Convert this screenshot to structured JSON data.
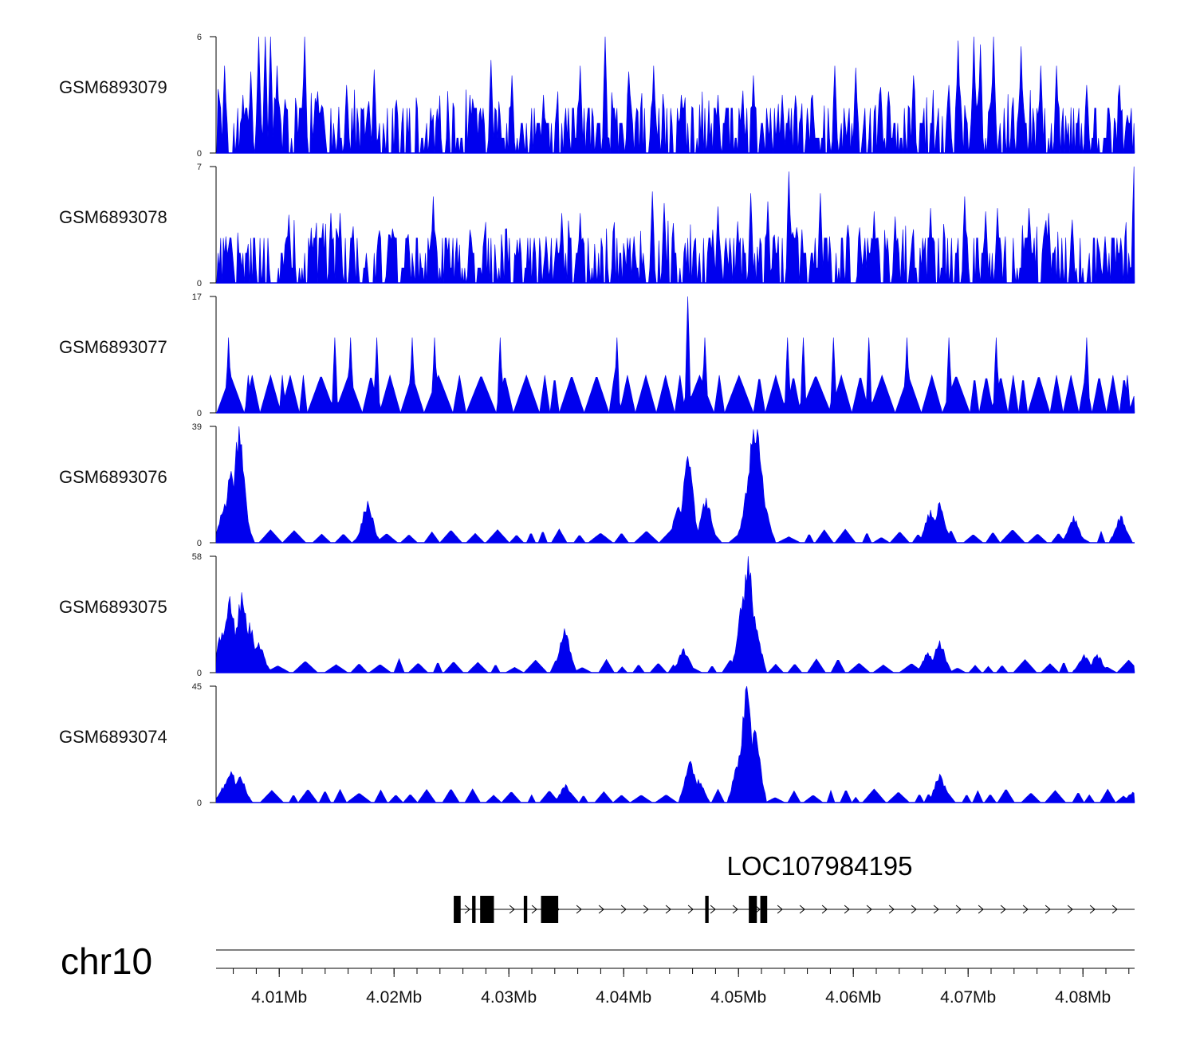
{
  "colors": {
    "signal": "#0000ee",
    "axis": "#000000",
    "text": "#111111"
  },
  "chart_data": {
    "type": "area",
    "title": "",
    "chromosome": "chr10",
    "xlim_bp": [
      4004500,
      4084500
    ],
    "x_ticks": [
      {
        "bp": 4010000,
        "label": "4.01Mb"
      },
      {
        "bp": 4020000,
        "label": "4.02Mb"
      },
      {
        "bp": 4030000,
        "label": "4.03Mb"
      },
      {
        "bp": 4040000,
        "label": "4.04Mb"
      },
      {
        "bp": 4050000,
        "label": "4.05Mb"
      },
      {
        "bp": 4060000,
        "label": "4.06Mb"
      },
      {
        "bp": 4070000,
        "label": "4.07Mb"
      },
      {
        "bp": 4080000,
        "label": "4.08Mb"
      }
    ],
    "minor_tick_bp": 2000,
    "tracks": [
      {
        "name": "GSM6893079",
        "ymax": 6,
        "ymax_label": "6",
        "ymin_label": "0",
        "profile": "dense",
        "peaks": [
          [
            4005200,
            4.5
          ],
          [
            4006800,
            3.0
          ],
          [
            4007500,
            4.2
          ],
          [
            4008100,
            6.0
          ],
          [
            4008700,
            6.0
          ],
          [
            4009200,
            6.0
          ],
          [
            4009800,
            4.5
          ],
          [
            4012200,
            6.0
          ],
          [
            4015800,
            3.5
          ],
          [
            4018200,
            4.3
          ],
          [
            4026500,
            3.0
          ],
          [
            4028400,
            4.8
          ],
          [
            4030200,
            4.0
          ],
          [
            4033000,
            3.0
          ],
          [
            4036200,
            4.5
          ],
          [
            4038300,
            6.0
          ],
          [
            4040400,
            4.2
          ],
          [
            4042500,
            4.5
          ],
          [
            4044900,
            3.0
          ],
          [
            4048200,
            3.0
          ],
          [
            4051200,
            4.0
          ],
          [
            4053800,
            3.0
          ],
          [
            4056400,
            3.0
          ],
          [
            4058300,
            4.5
          ],
          [
            4060100,
            4.4
          ],
          [
            4062300,
            3.4
          ],
          [
            4065200,
            4.0
          ],
          [
            4068300,
            3.5
          ],
          [
            4069100,
            5.8
          ],
          [
            4070400,
            6.0
          ],
          [
            4071000,
            5.6
          ],
          [
            4072200,
            6.0
          ],
          [
            4074600,
            5.5
          ],
          [
            4076300,
            4.5
          ],
          [
            4077600,
            4.5
          ],
          [
            4080300,
            3.5
          ],
          [
            4083100,
            3.5
          ]
        ]
      },
      {
        "name": "GSM6893078",
        "ymax": 7,
        "ymax_label": "7",
        "ymin_label": "0",
        "profile": "dense",
        "peaks": [
          [
            4005300,
            2.8
          ],
          [
            4010800,
            4.1
          ],
          [
            4012700,
            3.2
          ],
          [
            4014400,
            4.2
          ],
          [
            4015200,
            4.2
          ],
          [
            4019500,
            2.9
          ],
          [
            4023400,
            5.2
          ],
          [
            4026500,
            3.2
          ],
          [
            4027800,
            2.9
          ],
          [
            4030700,
            2.6
          ],
          [
            4033200,
            2.8
          ],
          [
            4034600,
            4.2
          ],
          [
            4036200,
            4.2
          ],
          [
            4040800,
            2.8
          ],
          [
            4042400,
            5.5
          ],
          [
            4043500,
            4.8
          ],
          [
            4047700,
            3.2
          ],
          [
            4048100,
            4.6
          ],
          [
            4049900,
            3.7
          ],
          [
            4051000,
            5.4
          ],
          [
            4052500,
            4.9
          ],
          [
            4054300,
            6.7
          ],
          [
            4057100,
            5.4
          ],
          [
            4060500,
            3.2
          ],
          [
            4061800,
            4.3
          ],
          [
            4063600,
            4.0
          ],
          [
            4066700,
            4.5
          ],
          [
            4069600,
            5.2
          ],
          [
            4071500,
            4.3
          ],
          [
            4072500,
            4.5
          ],
          [
            4075200,
            4.5
          ],
          [
            4077000,
            4.2
          ],
          [
            4079000,
            3.8
          ],
          [
            4081900,
            2.8
          ],
          [
            4084400,
            7.0
          ]
        ]
      },
      {
        "name": "GSM6893077",
        "ymax": 17,
        "ymax_label": "17",
        "ymin_label": "0",
        "profile": "triangles",
        "peaks": [
          [
            4005500,
            11.0
          ],
          [
            4007200,
            5.5
          ],
          [
            4010200,
            5.5
          ],
          [
            4014800,
            11.0
          ],
          [
            4016200,
            11.0
          ],
          [
            4018400,
            11.0
          ],
          [
            4021500,
            11.0
          ],
          [
            4023500,
            11.0
          ],
          [
            4029200,
            11.0
          ],
          [
            4039400,
            11.0
          ],
          [
            4045500,
            17.0
          ],
          [
            4047000,
            11.0
          ],
          [
            4054200,
            11.0
          ],
          [
            4055600,
            11.0
          ],
          [
            4058200,
            11.0
          ],
          [
            4061300,
            11.0
          ],
          [
            4064600,
            11.0
          ],
          [
            4068300,
            11.0
          ],
          [
            4072400,
            11.0
          ],
          [
            4080300,
            11.0
          ],
          [
            4083800,
            5.5
          ]
        ]
      },
      {
        "name": "GSM6893076",
        "ymax": 39,
        "ymax_label": "39",
        "ymin_label": "0",
        "profile": "sparse-peaks",
        "peaks": [
          [
            4006400,
            39.0
          ],
          [
            4005800,
            24.0
          ],
          [
            4005200,
            13.0
          ],
          [
            4017600,
            14.0
          ],
          [
            4045500,
            29.0
          ],
          [
            4044700,
            12.0
          ],
          [
            4047100,
            15.0
          ],
          [
            4051200,
            38.0
          ],
          [
            4051600,
            38.0
          ],
          [
            4050800,
            19.0
          ],
          [
            4052100,
            14.0
          ],
          [
            4067500,
            13.5
          ],
          [
            4066700,
            11.0
          ],
          [
            4079100,
            9.0
          ],
          [
            4083200,
            9.0
          ]
        ]
      },
      {
        "name": "GSM6893075",
        "ymax": 58,
        "ymax_label": "58",
        "ymin_label": "0",
        "profile": "sparse-peaks",
        "peaks": [
          [
            4005600,
            38.0
          ],
          [
            4006700,
            40.0
          ],
          [
            4007300,
            25.0
          ],
          [
            4004900,
            20.0
          ],
          [
            4008200,
            15.0
          ],
          [
            4034800,
            22.0
          ],
          [
            4045200,
            12.0
          ],
          [
            4050800,
            58.0
          ],
          [
            4050300,
            38.0
          ],
          [
            4051400,
            28.0
          ],
          [
            4067500,
            16.0
          ],
          [
            4066400,
            10.0
          ],
          [
            4080000,
            9.0
          ],
          [
            4081200,
            9.0
          ]
        ]
      },
      {
        "name": "GSM6893074",
        "ymax": 45,
        "ymax_label": "45",
        "ymin_label": "0",
        "profile": "sparse-peaks",
        "peaks": [
          [
            4005800,
            12.0
          ],
          [
            4006600,
            10.0
          ],
          [
            4005200,
            7.0
          ],
          [
            4045700,
            16.0
          ],
          [
            4046400,
            9.0
          ],
          [
            4050700,
            45.0
          ],
          [
            4051300,
            28.0
          ],
          [
            4050000,
            18.0
          ],
          [
            4034900,
            7.0
          ],
          [
            4067500,
            11.0
          ],
          [
            4084300,
            4.0
          ]
        ]
      }
    ],
    "gene": {
      "name": "LOC107984195",
      "strand": "+",
      "start_bp": 4025200,
      "end_bp": 4084500,
      "exons": [
        [
          4025200,
          4025800
        ],
        [
          4026800,
          4027100
        ],
        [
          4027500,
          4028700
        ],
        [
          4031300,
          4031600
        ],
        [
          4032800,
          4034300
        ],
        [
          4047100,
          4047400
        ],
        [
          4050900,
          4051600
        ],
        [
          4051900,
          4052500
        ]
      ]
    }
  }
}
